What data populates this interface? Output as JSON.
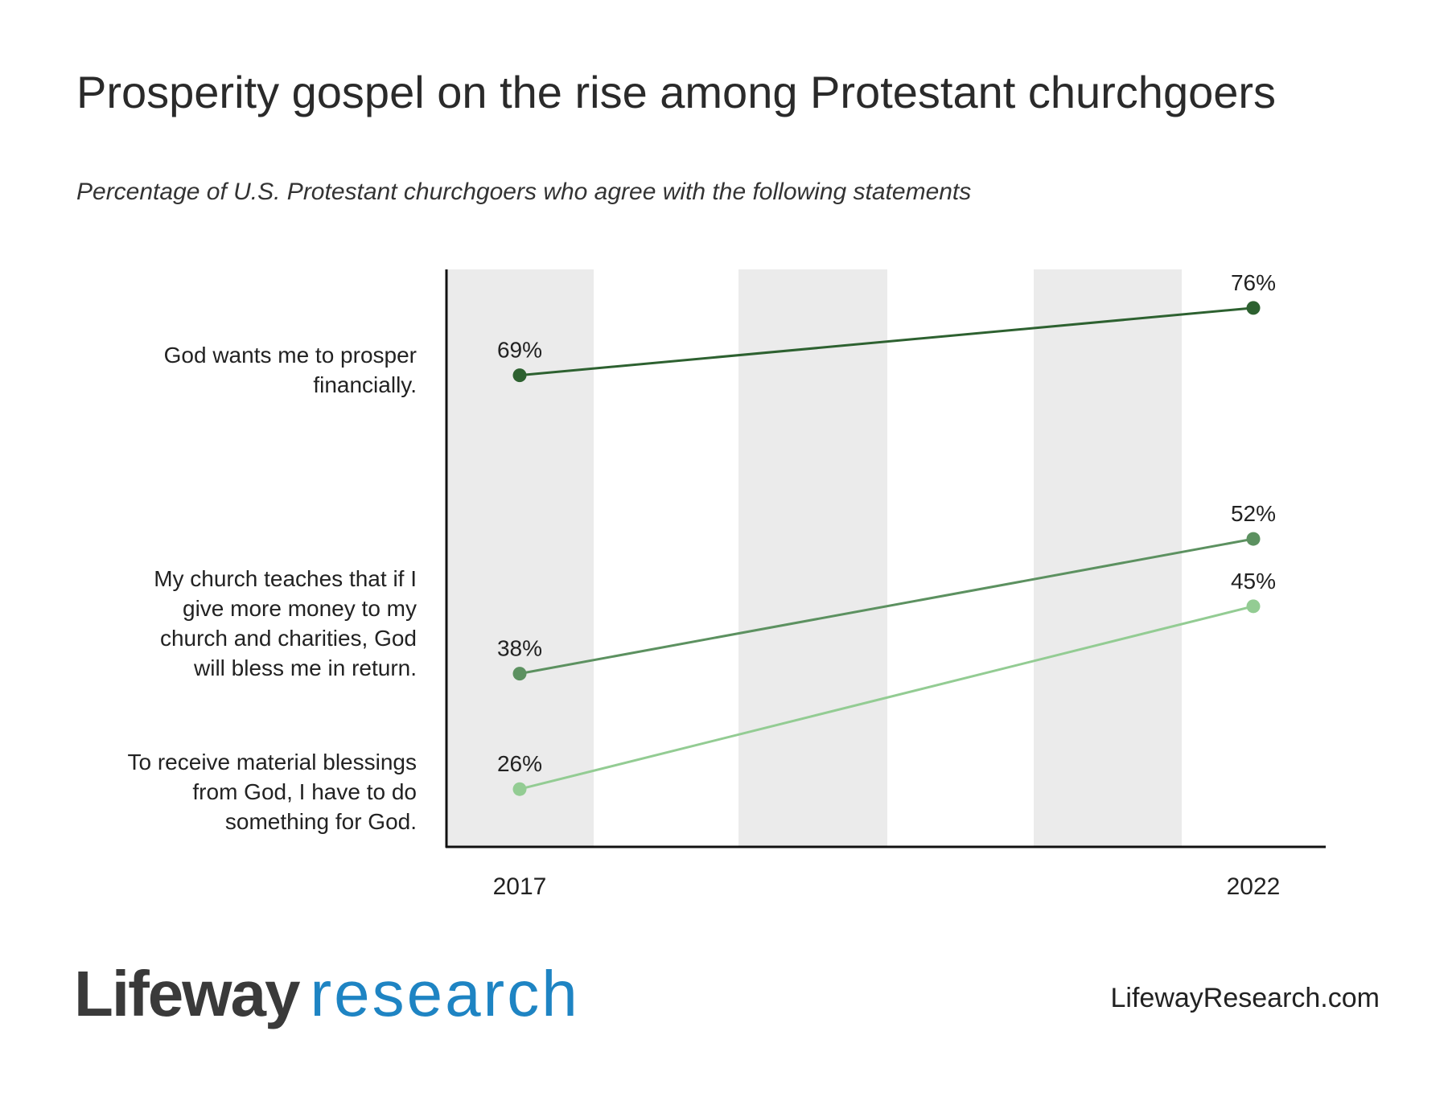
{
  "title": "Prosperity gospel on the rise among Protestant churchgoers",
  "subtitle": "Percentage of U.S. Protestant churchgoers who agree with the following statements",
  "chart_data": {
    "type": "line",
    "x": [
      "2017",
      "2022"
    ],
    "ylim": [
      20,
      80
    ],
    "grid": false,
    "series": [
      {
        "name": "God wants me to prosper financially.",
        "values": [
          69,
          76
        ],
        "labels": [
          "69%",
          "76%"
        ],
        "color": "#2d6130"
      },
      {
        "name": "My church teaches that if I give more money to my church and charities, God will bless me in return.",
        "values": [
          38,
          52
        ],
        "labels": [
          "38%",
          "52%"
        ],
        "color": "#5c9160"
      },
      {
        "name": "To receive material blessings from God, I have to do something for God.",
        "values": [
          26,
          45
        ],
        "labels": [
          "26%",
          "45%"
        ],
        "color": "#93cc93"
      }
    ],
    "category_label_lines": [
      [
        "God wants me to prosper",
        "financially."
      ],
      [
        "My church teaches that if I",
        "give more money to my",
        "church and charities, God",
        "will bless me in return."
      ],
      [
        "To receive material blessings",
        "from God, I have to do",
        "something for God."
      ]
    ],
    "band_color": "#ebebeb"
  },
  "footer": {
    "logo_part1": "Lifeway",
    "logo_part2": "research",
    "url": "LifewayResearch.com"
  }
}
